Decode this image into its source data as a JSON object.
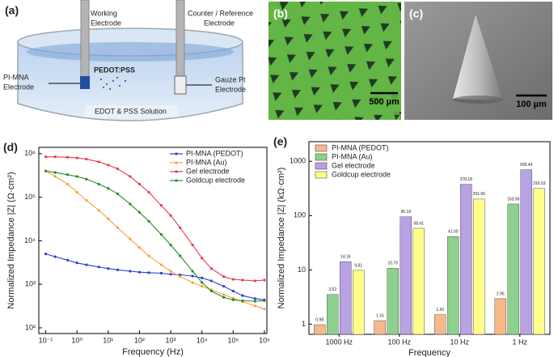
{
  "figure": {
    "a": {
      "panel": "(a)",
      "working": [
        "Working",
        "Electrode"
      ],
      "counter": [
        "Counter / Reference",
        "Electrode"
      ],
      "pimna": [
        "PI-MNA",
        "Electrode"
      ],
      "pedot": "PEDOT:PSS",
      "gauze": [
        "Gauze Pt",
        "Electrode"
      ],
      "solution": "EDOT & PSS Solution"
    },
    "b": {
      "panel": "(b)",
      "scale": "500 µm"
    },
    "c": {
      "panel": "(c)",
      "scale": "100 µm"
    }
  },
  "chart_data": [
    {
      "type": "line",
      "panel": "(d)",
      "x_label": "Frequency (Hz)",
      "y_label": "Normalized Impedance |Z| (Ω·cm²)",
      "xscale": "log",
      "yscale": "log",
      "legend": "upper right",
      "xlim": [
        0.06,
        1200000
      ],
      "ylim": [
        74,
        1400000
      ],
      "xticks": [
        {
          "value": 0.1,
          "label": "10⁻¹"
        },
        {
          "value": 1,
          "label": "10⁰"
        },
        {
          "value": 10,
          "label": "10¹"
        },
        {
          "value": 100,
          "label": "10²"
        },
        {
          "value": 1000,
          "label": "10³"
        },
        {
          "value": 10000,
          "label": "10⁴"
        },
        {
          "value": 100000,
          "label": "10⁵"
        },
        {
          "value": 1000000,
          "label": "10⁶"
        }
      ],
      "yticks": [
        {
          "value": 100,
          "label": "10²"
        },
        {
          "value": 1000,
          "label": "10³"
        },
        {
          "value": 10000,
          "label": "10⁴"
        },
        {
          "value": 100000,
          "label": "10⁵"
        },
        {
          "value": 1000000,
          "label": "10⁶"
        }
      ],
      "x": [
        0.1,
        0.2,
        0.5,
        1,
        2,
        5,
        10,
        20,
        50,
        100,
        200,
        500,
        1000,
        2000,
        5000,
        10000,
        20000,
        50000,
        100000,
        200000,
        500000,
        1000000
      ],
      "series": [
        {
          "name": "PI-MNA (PEDOT)",
          "color": "#2c3fd1",
          "values": [
            5000,
            4300,
            3600,
            3100,
            2800,
            2500,
            2300,
            2150,
            2000,
            1900,
            1850,
            1800,
            1700,
            1650,
            1550,
            1400,
            1200,
            900,
            700,
            550,
            470,
            440
          ]
        },
        {
          "name": "PI-MNA (Au)",
          "color": "#f5a340",
          "values": [
            400000,
            300000,
            200000,
            130000,
            85000,
            50000,
            32000,
            20000,
            11000,
            7000,
            4500,
            2800,
            2000,
            1500,
            1100,
            900,
            750,
            580,
            480,
            400,
            320,
            270
          ]
        },
        {
          "name": "Gel electrode",
          "color": "#e8384f",
          "values": [
            850000,
            850000,
            830000,
            800000,
            750000,
            650000,
            550000,
            450000,
            300000,
            200000,
            130000,
            65000,
            38000,
            20000,
            8000,
            4000,
            2300,
            1500,
            1300,
            1250,
            1200,
            1250
          ]
        },
        {
          "name": "Goldcup electrode",
          "color": "#2a8a2a",
          "values": [
            400000,
            370000,
            330000,
            300000,
            260000,
            200000,
            160000,
            120000,
            70000,
            45000,
            28000,
            14000,
            8000,
            4500,
            2000,
            1100,
            700,
            500,
            440,
            420,
            410,
            420
          ]
        }
      ]
    },
    {
      "type": "bar",
      "panel": "(e)",
      "x_label": "Frequency",
      "y_label": "Normalized Impedance |Z| (kΩ·cm²)",
      "yscale": "log",
      "legend": "upper left",
      "ylim": [
        0.65,
        2300
      ],
      "yticks": [
        1,
        10,
        100,
        1000
      ],
      "categories": [
        "1000 Hz",
        "100 Hz",
        "10 Hz",
        "1 Hz"
      ],
      "series": [
        {
          "name": "PI-MNA (PEDOT)",
          "color": "#f7b98a",
          "values": [
            0.98,
            1.16,
            1.5,
            2.95
          ],
          "value_labels": [
            "0.98",
            "1.16",
            "1.50",
            "2.95"
          ]
        },
        {
          "name": "PI-MNA (Au)",
          "color": "#8ed18e",
          "values": [
            3.52,
            10.7,
            41,
            163.56
          ],
          "value_labels": [
            "3.52",
            "10.70",
            "41.00",
            "163.56"
          ]
        },
        {
          "name": "Gel electrode",
          "color": "#b8a2e3",
          "values": [
            14.16,
            95.18,
            378.18,
            699.43
          ],
          "value_labels": [
            "14.16",
            "95.18",
            "378.18",
            "699.43"
          ]
        },
        {
          "name": "Goldcup electrode",
          "color": "#ffff8a",
          "values": [
            9.81,
            58.41,
            201.56,
            316.53
          ],
          "value_labels": [
            "9.81",
            "58.41",
            "201.56",
            "316.53"
          ]
        }
      ]
    }
  ]
}
